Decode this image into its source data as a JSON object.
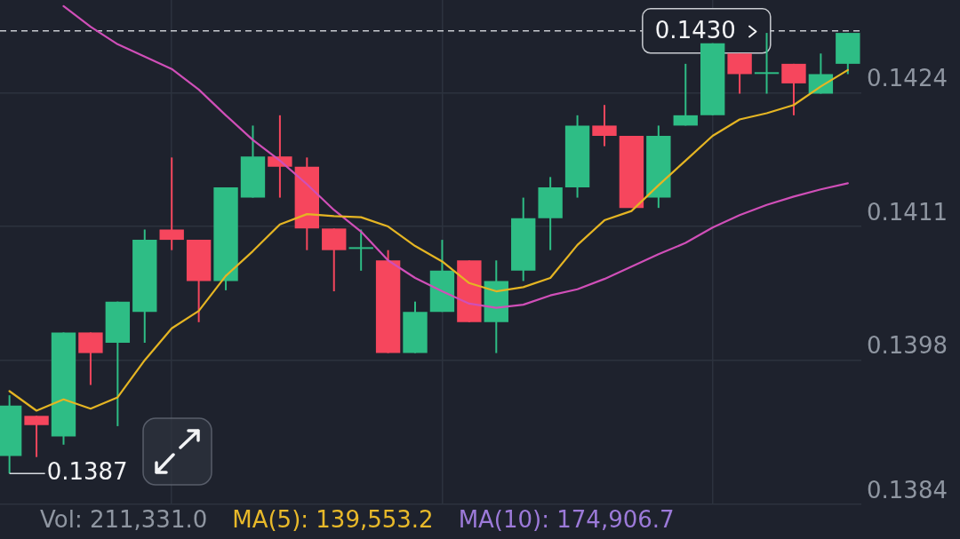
{
  "chart_data": {
    "type": "candlestick",
    "categories": [
      null,
      null,
      null,
      null,
      null,
      null,
      null,
      null,
      null,
      null,
      null,
      null,
      null,
      null,
      null,
      null,
      null,
      null,
      null,
      null,
      null,
      null,
      null,
      null,
      null,
      null,
      null,
      null,
      null,
      null,
      null,
      null
    ],
    "ohlc": [
      [
        0.13887,
        0.13946,
        0.1387,
        0.13936
      ],
      [
        0.13926,
        0.13926,
        0.13886,
        0.13917
      ],
      [
        0.13906,
        0.14007,
        0.13898,
        0.14007
      ],
      [
        0.14007,
        0.14007,
        0.13956,
        0.13987
      ],
      [
        0.13997,
        0.14037,
        0.13916,
        0.14037
      ],
      [
        0.14027,
        0.14107,
        0.13997,
        0.14097
      ],
      [
        0.14107,
        0.14177,
        0.14087,
        0.14097
      ],
      [
        0.14097,
        0.14097,
        0.14017,
        0.14057
      ],
      [
        0.14057,
        0.14148,
        0.14048,
        0.14148
      ],
      [
        0.14138,
        0.14208,
        0.14138,
        0.14178
      ],
      [
        0.14178,
        0.14218,
        0.14138,
        0.14168
      ],
      [
        0.14168,
        0.14177,
        0.14087,
        0.14108
      ],
      [
        0.14108,
        0.14108,
        0.14047,
        0.14087
      ],
      [
        0.14089,
        0.14107,
        0.14067,
        0.14089
      ],
      [
        0.14077,
        0.14087,
        0.13987,
        0.13987
      ],
      [
        0.13987,
        0.14037,
        0.13987,
        0.14027
      ],
      [
        0.14027,
        0.14097,
        0.14027,
        0.14067
      ],
      [
        0.14077,
        0.14077,
        0.14017,
        0.14017
      ],
      [
        0.14017,
        0.14077,
        0.13987,
        0.14057
      ],
      [
        0.14067,
        0.14138,
        0.14057,
        0.14118
      ],
      [
        0.14118,
        0.14158,
        0.14087,
        0.14148
      ],
      [
        0.14148,
        0.14218,
        0.14138,
        0.14208
      ],
      [
        0.14208,
        0.14228,
        0.14188,
        0.14198
      ],
      [
        0.14198,
        0.14198,
        0.14128,
        0.14128
      ],
      [
        0.14138,
        0.14208,
        0.14128,
        0.14198
      ],
      [
        0.14208,
        0.14268,
        0.14208,
        0.14218
      ],
      [
        0.14218,
        0.14288,
        0.14218,
        0.14288
      ],
      [
        0.14278,
        0.14278,
        0.14239,
        0.14258
      ],
      [
        0.14259,
        0.14298,
        0.14239,
        0.14259
      ],
      [
        0.14268,
        0.14268,
        0.14218,
        0.14249
      ],
      [
        0.14239,
        0.14278,
        0.14239,
        0.14258
      ],
      [
        0.14268,
        0.14298,
        0.14258,
        0.14298
      ]
    ],
    "colors": [
      "#2ebd85",
      "#f6465d",
      "#2ebd85",
      "#f6465d",
      "#2ebd85",
      "#2ebd85",
      "#f6465d",
      "#f6465d",
      "#2ebd85",
      "#2ebd85",
      "#f6465d",
      "#f6465d",
      "#f6465d",
      "#2ebd85",
      "#f6465d",
      "#2ebd85",
      "#2ebd85",
      "#f6465d",
      "#2ebd85",
      "#2ebd85",
      "#2ebd85",
      "#2ebd85",
      "#f6465d",
      "#f6465d",
      "#2ebd85",
      "#2ebd85",
      "#2ebd85",
      "#f6465d",
      "#2ebd85",
      "#f6465d",
      "#2ebd85",
      "#2ebd85"
    ],
    "series": [
      {
        "type": "line",
        "color": "#e5b523",
        "values": [
          0.1395,
          0.13931,
          0.13942,
          0.13933,
          0.13944,
          0.1398,
          0.14011,
          0.14028,
          0.14062,
          0.14086,
          0.14112,
          0.14122,
          0.1412,
          0.14119,
          0.1411,
          0.14091,
          0.14076,
          0.14055,
          0.14047,
          0.14051,
          0.1406,
          0.14092,
          0.14116,
          0.14125,
          0.1415,
          0.14174,
          0.14198,
          0.14214,
          0.1422,
          0.14228,
          0.14246,
          0.14262
        ]
      },
      {
        "type": "line",
        "color": "#d04fb8",
        "values": [
          null,
          null,
          0.14324,
          0.14304,
          0.14287,
          0.14275,
          0.14263,
          0.14243,
          0.14218,
          0.14194,
          0.14174,
          0.14151,
          0.14126,
          0.14105,
          0.14077,
          0.1406,
          0.14047,
          0.14035,
          0.14031,
          0.14034,
          0.14043,
          0.14049,
          0.14059,
          0.14071,
          0.14083,
          0.14094,
          0.14109,
          0.14121,
          0.14131,
          0.14139,
          0.14146,
          0.14152
        ]
      }
    ],
    "ylim": [
      0.1384,
      0.1433
    ],
    "yticks": [
      0.1384,
      0.1398,
      0.1411,
      0.1424
    ],
    "ref_lines": [
      {
        "axis": "y",
        "value": 0.143,
        "label": "0.1430",
        "line_style": "dashed",
        "color": "#c9ccd1"
      }
    ],
    "annotations": [
      "0.1387",
      "Vol: 211,331.0",
      "MA(5): 139,553.2",
      "MA(10): 174,906.7"
    ],
    "grid": true,
    "tick_labels": "y",
    "marker": "none",
    "line_style": "solid"
  }
}
